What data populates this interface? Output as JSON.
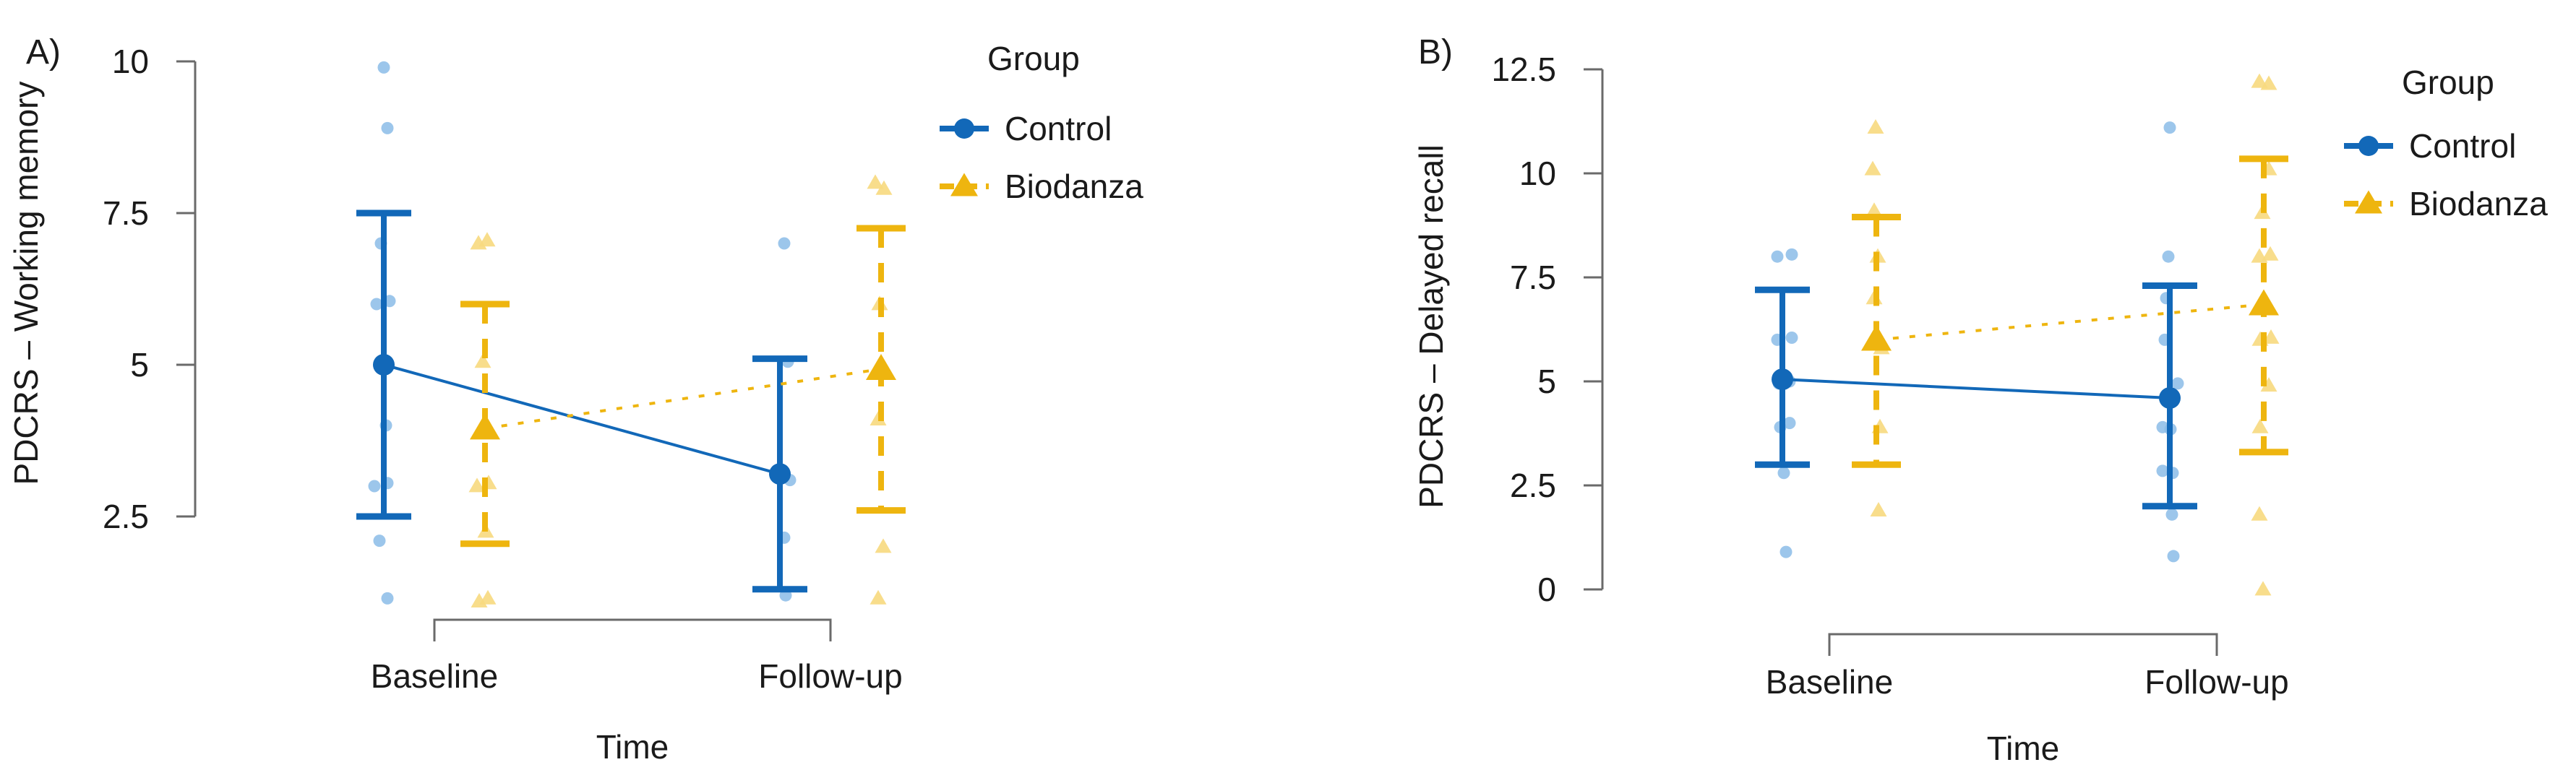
{
  "figure": {
    "background": "#ffffff",
    "x_axis_label": "Time",
    "categories": [
      "Baseline",
      "Follow-up"
    ]
  },
  "colors": {
    "control": "#1268b8",
    "control_light": "#8bbce8",
    "biodanza": "#eeb50f",
    "biodanza_light": "#f7d97e",
    "axis": "#6a6a6a",
    "text": "#1a1a1a"
  },
  "legend": {
    "title": "Group",
    "entries": [
      {
        "label": "Control",
        "series": "Control",
        "marker": "circle",
        "line": "solid"
      },
      {
        "label": "Biodanza",
        "series": "Biodanza",
        "marker": "triangle",
        "line": "dashed"
      }
    ]
  },
  "chart_data": [
    {
      "type": "line",
      "panel_label": "A)",
      "ylabel": "PDCRS – Working memory",
      "xlabel": "Time",
      "categories": [
        "Baseline",
        "Follow-up"
      ],
      "ylim": [
        2.5,
        10
      ],
      "yticks": [
        2.5,
        5,
        7.5,
        10
      ],
      "ytick_labels": [
        "2.5",
        "5",
        "7.5",
        "10"
      ],
      "grid": false,
      "legend_position": "right",
      "series": [
        {
          "name": "Control",
          "means": [
            5.0,
            3.2
          ],
          "ci_low": [
            2.5,
            1.3
          ],
          "ci_high": [
            7.5,
            5.1
          ],
          "points": [
            {
              "time": "Baseline",
              "values": [
                9.9,
                8.9,
                7.0,
                6.0,
                6.05,
                4.0,
                3.0,
                3.05,
                2.1,
                1.15
              ],
              "dx": [
                0,
                5,
                -4,
                -10,
                8,
                3,
                -13,
                5,
                -6,
                5
              ]
            },
            {
              "time": "Follow-up",
              "values": [
                7.0,
                5.05,
                3.1,
                2.15,
                1.2
              ],
              "dx": [
                6,
                11,
                14,
                6,
                8
              ]
            }
          ]
        },
        {
          "name": "Biodanza",
          "means": [
            3.95,
            4.93
          ],
          "ci_low": [
            2.05,
            2.6
          ],
          "ci_high": [
            6.0,
            7.25
          ],
          "points": [
            {
              "time": "Baseline",
              "values": [
                7.0,
                7.05,
                5.05,
                3.0,
                3.05,
                2.25,
                1.1,
                1.15
              ],
              "dx": [
                -9,
                3,
                -3,
                -11,
                5,
                1,
                -8,
                4
              ]
            },
            {
              "time": "Follow-up",
              "values": [
                8.0,
                7.9,
                6.0,
                4.1,
                2.0,
                1.15
              ],
              "dx": [
                -8,
                4,
                -2,
                -4,
                3,
                -4
              ]
            }
          ]
        }
      ]
    },
    {
      "type": "line",
      "panel_label": "B)",
      "ylabel": "PDCRS – Delayed recall",
      "xlabel": "Time",
      "categories": [
        "Baseline",
        "Follow-up"
      ],
      "ylim": [
        0,
        12.5
      ],
      "yticks": [
        0,
        2.5,
        5,
        7.5,
        10,
        12.5
      ],
      "ytick_labels": [
        "0",
        "2.5",
        "5",
        "7.5",
        "10",
        "12.5"
      ],
      "grid": false,
      "legend_position": "right",
      "series": [
        {
          "name": "Control",
          "means": [
            5.05,
            4.6
          ],
          "ci_low": [
            3.0,
            2.0
          ],
          "ci_high": [
            7.2,
            7.3
          ],
          "points": [
            {
              "time": "Baseline",
              "values": [
                8.0,
                8.05,
                6.0,
                6.05,
                4.95,
                5.0,
                3.9,
                4.0,
                2.8,
                0.9
              ],
              "dx": [
                -7,
                13,
                -7,
                13,
                -5,
                10,
                -3,
                10,
                2,
                5
              ]
            },
            {
              "time": "Follow-up",
              "values": [
                11.1,
                8.0,
                7.0,
                6.0,
                4.95,
                3.9,
                3.85,
                2.85,
                2.8,
                1.8,
                0.8
              ],
              "dx": [
                0,
                -2,
                -5,
                -7,
                11,
                -10,
                1,
                -10,
                4,
                3,
                5
              ]
            }
          ]
        },
        {
          "name": "Biodanza",
          "means": [
            6.0,
            6.85
          ],
          "ci_low": [
            3.0,
            3.3
          ],
          "ci_high": [
            8.95,
            10.35
          ],
          "points": [
            {
              "time": "Baseline",
              "values": [
                11.1,
                10.1,
                9.1,
                8.0,
                7.0,
                5.8,
                3.9,
                1.9
              ],
              "dx": [
                -1,
                -5,
                -3,
                2,
                -3,
                7,
                5,
                3
              ]
            },
            {
              "time": "Follow-up",
              "values": [
                12.2,
                12.15,
                10.1,
                9.05,
                8.0,
                8.05,
                6.0,
                6.05,
                4.9,
                3.9,
                1.8,
                0.0
              ],
              "dx": [
                -6,
                7,
                7,
                -2,
                -6,
                9,
                -5,
                10,
                7,
                -5,
                -6,
                -1
              ]
            }
          ]
        }
      ]
    }
  ]
}
